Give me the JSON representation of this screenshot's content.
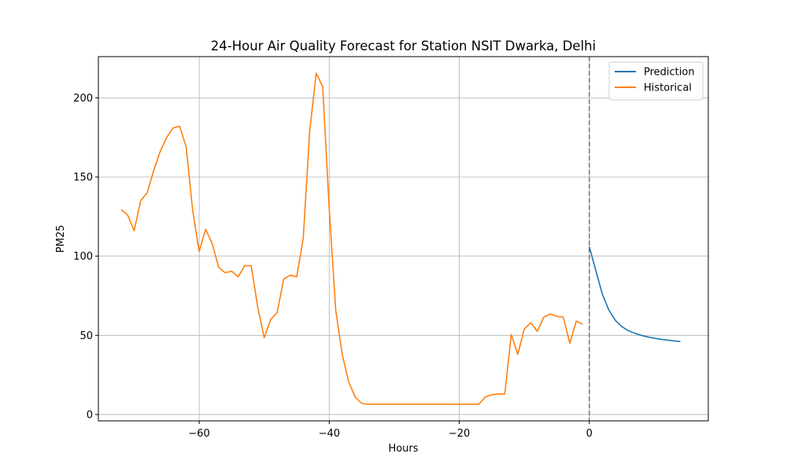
{
  "chart_data": {
    "type": "line",
    "title": "24-Hour Air Quality Forecast for Station NSIT Dwarka, Delhi",
    "xlabel": "Hours",
    "ylabel": "PM25",
    "xlim": [
      -75.5,
      18.3
    ],
    "ylim": [
      -4,
      226
    ],
    "xticks": [
      -60,
      -40,
      -20,
      0
    ],
    "yticks": [
      0,
      50,
      100,
      150,
      200
    ],
    "grid": true,
    "legend_position": "upper right",
    "vline": {
      "x": 0,
      "style": "dashed",
      "color": "#7f7f7f"
    },
    "series": [
      {
        "name": "Prediction",
        "color": "#1f77b4",
        "x": [
          0,
          1,
          2,
          3,
          4,
          5,
          6,
          7,
          8,
          9,
          10,
          11,
          12,
          13,
          14
        ],
        "y": [
          106,
          91,
          76,
          66,
          59.5,
          55.5,
          53,
          51.3,
          50,
          49,
          48.2,
          47.5,
          47,
          46.5,
          46.1
        ]
      },
      {
        "name": "Historical",
        "color": "#ff7f0e",
        "x": [
          -72,
          -71,
          -70,
          -69,
          -68,
          -67,
          -66,
          -65,
          -64,
          -63,
          -62,
          -61,
          -60,
          -59,
          -58,
          -57,
          -56,
          -55,
          -54,
          -53,
          -52,
          -51,
          -50,
          -49,
          -48,
          -47,
          -46,
          -45,
          -44,
          -43,
          -42,
          -41,
          -40,
          -39,
          -38,
          -37,
          -36,
          -35,
          -34,
          -33,
          -32,
          -31,
          -30,
          -29,
          -28,
          -27,
          -26,
          -25,
          -24,
          -23,
          -22,
          -21,
          -20,
          -19,
          -18,
          -17,
          -16,
          -15,
          -14,
          -13,
          -12,
          -11,
          -10,
          -9,
          -8,
          -7,
          -6,
          -5,
          -4,
          -3,
          -2,
          -1
        ],
        "y": [
          129.5,
          126,
          116,
          135,
          140,
          154,
          166,
          175,
          181,
          182,
          169,
          129,
          103,
          117,
          108,
          93,
          89.5,
          90.5,
          87,
          94,
          94,
          68,
          48.5,
          60,
          64.5,
          85.5,
          88,
          87,
          111,
          179,
          215.5,
          207,
          130,
          66,
          38,
          20.5,
          11,
          7,
          6.5,
          6.5,
          6.5,
          6.5,
          6.5,
          6.5,
          6.5,
          6.5,
          6.5,
          6.5,
          6.5,
          6.5,
          6.5,
          6.5,
          6.5,
          6.5,
          6.5,
          6.5,
          11,
          12.5,
          13,
          13,
          50.5,
          38,
          54,
          58,
          52.5,
          61.5,
          63.5,
          62,
          61.5,
          45,
          59,
          57
        ]
      }
    ]
  }
}
